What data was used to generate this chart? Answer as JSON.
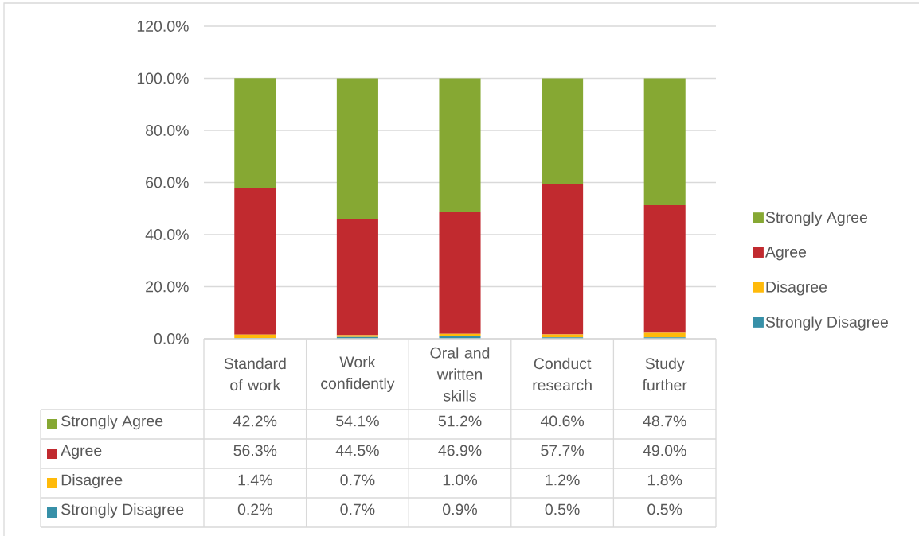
{
  "chart_data": {
    "type": "bar",
    "stacked": true,
    "categories": [
      "Standard of work",
      "Work confidently",
      "Oral and written skills",
      "Conduct research",
      "Study further"
    ],
    "series": [
      {
        "name": "Strongly Disagree",
        "color": "#3790a8",
        "values": [
          0.2,
          0.7,
          0.9,
          0.5,
          0.5
        ],
        "value_labels": [
          "0.2%",
          "0.7%",
          "0.9%",
          "0.5%",
          "0.5%"
        ]
      },
      {
        "name": "Disagree",
        "color": "#ffba0a",
        "values": [
          1.4,
          0.7,
          1.0,
          1.2,
          1.8
        ],
        "value_labels": [
          "1.4%",
          "0.7%",
          "1.0%",
          "1.2%",
          "1.8%"
        ]
      },
      {
        "name": "Agree",
        "color": "#c12a2f",
        "values": [
          56.3,
          44.5,
          46.9,
          57.7,
          49.0
        ],
        "value_labels": [
          "56.3%",
          "44.5%",
          "46.9%",
          "57.7%",
          "49.0%"
        ]
      },
      {
        "name": "Strongly Agree",
        "color": "#86a833",
        "values": [
          42.2,
          54.1,
          51.2,
          40.6,
          48.7
        ],
        "value_labels": [
          "42.2%",
          "54.1%",
          "51.2%",
          "40.6%",
          "48.7%"
        ]
      }
    ],
    "ylim": [
      0,
      120
    ],
    "yticks": [
      {
        "value": 0,
        "label": "0.0%"
      },
      {
        "value": 20,
        "label": "20.0%"
      },
      {
        "value": 40,
        "label": "40.0%"
      },
      {
        "value": 60,
        "label": "60.0%"
      },
      {
        "value": 80,
        "label": "80.0%"
      },
      {
        "value": 100,
        "label": "100.0%"
      },
      {
        "value": 120,
        "label": "120.0%"
      }
    ],
    "grid": "y",
    "legend": "right"
  }
}
